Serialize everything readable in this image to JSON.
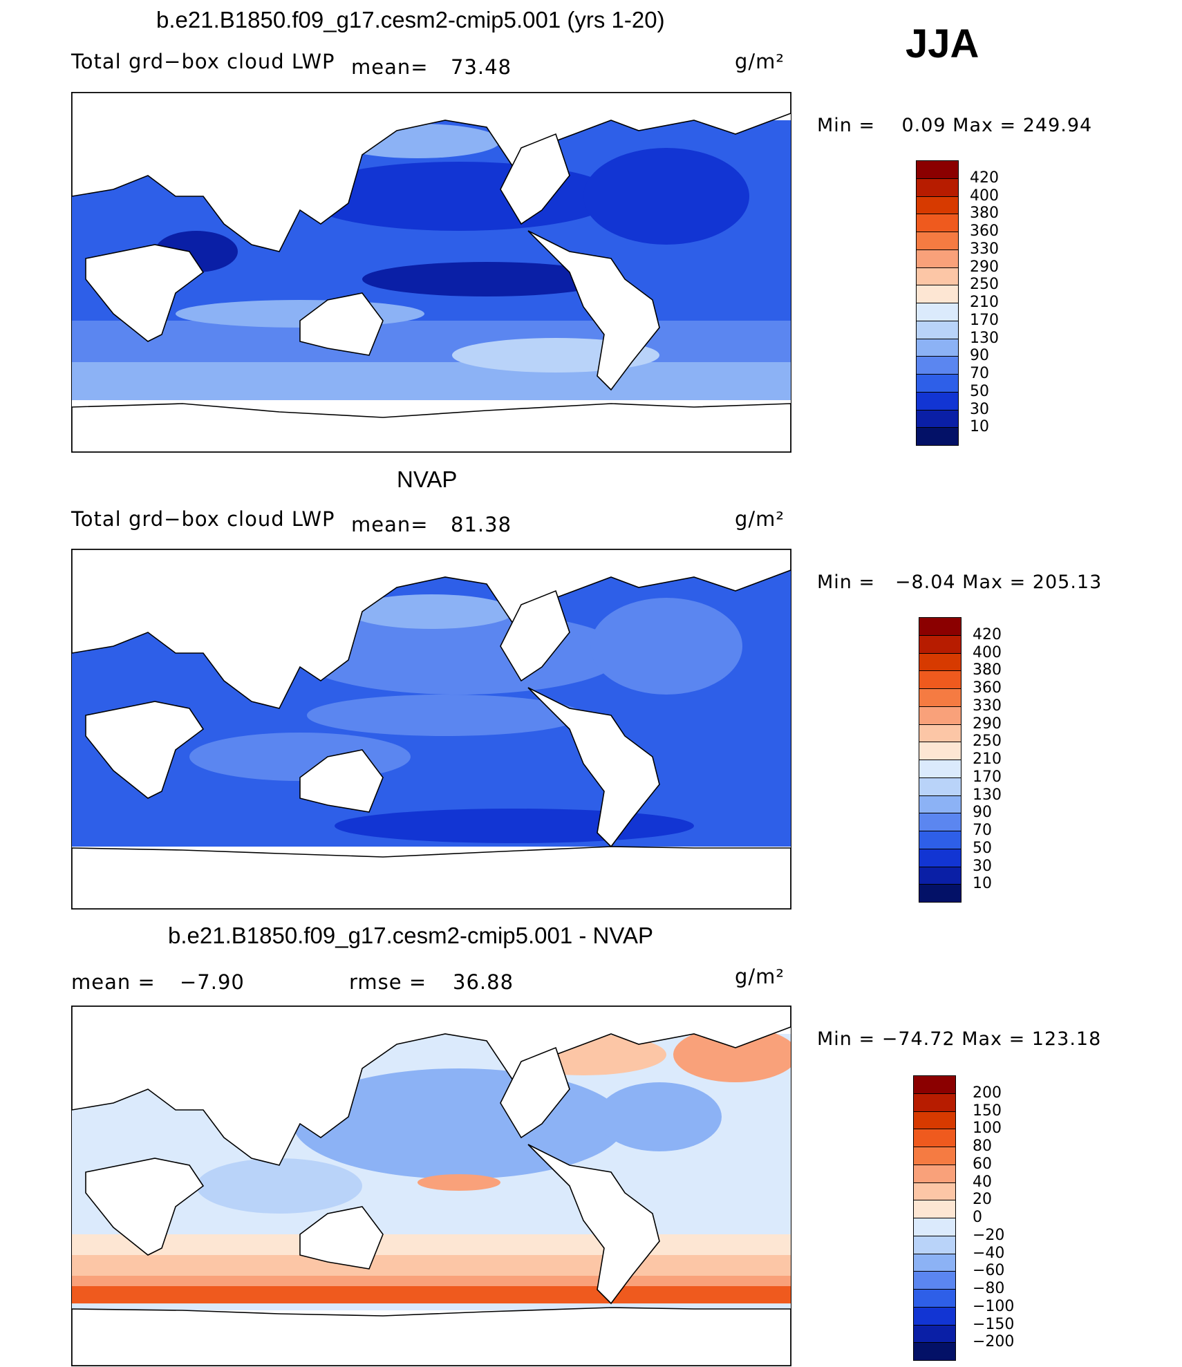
{
  "season": "JJA",
  "panels": [
    {
      "id": "model",
      "title": "b.e21.B1850.f09_g17.cesm2-cmip5.001 (yrs 1-20)",
      "variable": "Total grd−box cloud LWP",
      "mean_label": "mean=",
      "mean_value": "73.48",
      "units": "g/m²",
      "min_max": "Min =    0.09 Max = 249.94",
      "levels": [
        "420",
        "400",
        "380",
        "360",
        "330",
        "290",
        "250",
        "210",
        "170",
        "130",
        "90",
        "70",
        "50",
        "30",
        "10"
      ],
      "colors": [
        "#8b0000",
        "#b71c00",
        "#d73a00",
        "#ef5a1e",
        "#f57b42",
        "#f9a17a",
        "#fcc6a6",
        "#fde6d3",
        "#dbeafc",
        "#b9d3f9",
        "#8cb2f5",
        "#5b86f0",
        "#2e5fe8",
        "#1235d3",
        "#0a1fa6",
        "#031167"
      ]
    },
    {
      "id": "obs",
      "title": "NVAP",
      "variable": "Total grd−box cloud LWP",
      "mean_label": "mean=",
      "mean_value": "81.38",
      "units": "g/m²",
      "min_max": "Min =   −8.04 Max = 205.13",
      "levels": [
        "420",
        "400",
        "380",
        "360",
        "330",
        "290",
        "250",
        "210",
        "170",
        "130",
        "90",
        "70",
        "50",
        "30",
        "10"
      ],
      "colors": [
        "#8b0000",
        "#b71c00",
        "#d73a00",
        "#ef5a1e",
        "#f57b42",
        "#f9a17a",
        "#fcc6a6",
        "#fde6d3",
        "#dbeafc",
        "#b9d3f9",
        "#8cb2f5",
        "#5b86f0",
        "#2e5fe8",
        "#1235d3",
        "#0a1fa6",
        "#031167"
      ]
    },
    {
      "id": "diff",
      "title": "b.e21.B1850.f09_g17.cesm2-cmip5.001 - NVAP",
      "mean_label": "mean =",
      "mean_value": "−7.90",
      "rmse_label": "rmse =",
      "rmse_value": "36.88",
      "units": "g/m²",
      "min_max": "Min = −74.72 Max = 123.18",
      "levels": [
        "200",
        "150",
        "100",
        "80",
        "60",
        "40",
        "20",
        "0",
        "−20",
        "−40",
        "−60",
        "−80",
        "−100",
        "−150",
        "−200"
      ],
      "colors": [
        "#8b0000",
        "#b71c00",
        "#d73a00",
        "#ef5a1e",
        "#f57b42",
        "#f9a17a",
        "#fcc6a6",
        "#fde6d3",
        "#dbeafc",
        "#b9d3f9",
        "#8cb2f5",
        "#5b86f0",
        "#2e5fe8",
        "#1235d3",
        "#0a1fa6",
        "#031167"
      ]
    }
  ]
}
